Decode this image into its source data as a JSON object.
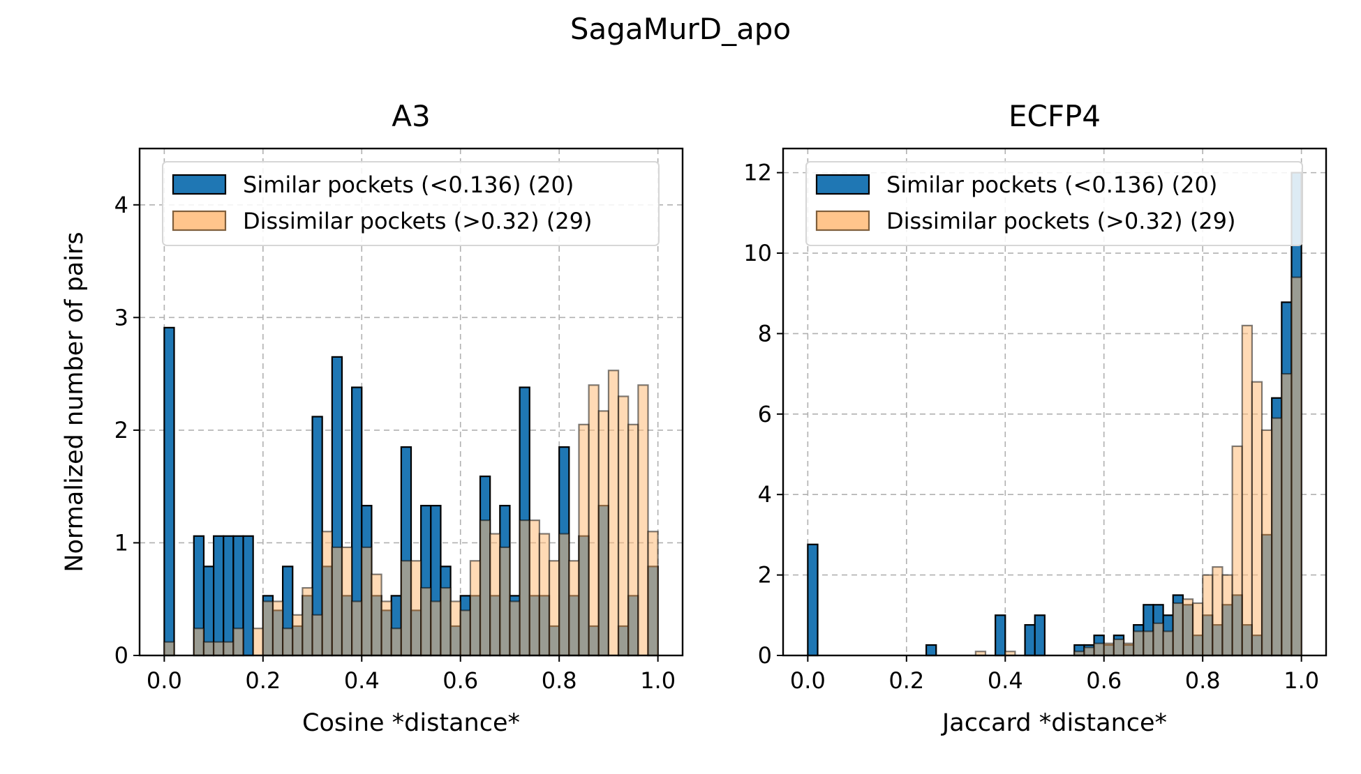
{
  "figure": {
    "suptitle": "SagaMurD_apo"
  },
  "colors": {
    "similar": "#1f77b4",
    "dissimilar": "#ffbb78",
    "dissimilar_edge": "#7f5f3c",
    "overlap": "#8c6a4a"
  },
  "chart_data": [
    {
      "type": "histogram",
      "title": "A3",
      "xlabel": "Cosine *distance*",
      "ylabel": "Normalized number of pairs",
      "xlim": [
        -0.05,
        1.05
      ],
      "ylim": [
        0,
        4.5
      ],
      "xticks": [
        0.0,
        0.2,
        0.4,
        0.6,
        0.8,
        1.0
      ],
      "xtick_labels": [
        "0.0",
        "0.2",
        "0.4",
        "0.6",
        "0.8",
        "1.0"
      ],
      "yticks": [
        0,
        1,
        2,
        3,
        4
      ],
      "ytick_labels": [
        "0",
        "1",
        "2",
        "3",
        "4"
      ],
      "grid": true,
      "legend_position": "top",
      "bins": {
        "start": 0.0,
        "end": 1.0,
        "count": 50
      },
      "series": [
        {
          "name": "Similar pockets (<0.136) (20)",
          "values": [
            2.91,
            0,
            0,
            1.06,
            0.79,
            1.06,
            1.06,
            1.06,
            1.06,
            0,
            0.53,
            0.4,
            0.79,
            0.26,
            0.53,
            2.12,
            0.79,
            2.65,
            0.53,
            2.38,
            1.33,
            0.53,
            0.4,
            0.53,
            1.85,
            0.4,
            1.33,
            1.33,
            0.79,
            0.26,
            0.53,
            0.53,
            1.59,
            0.53,
            1.33,
            0.53,
            2.38,
            0.53,
            0.53,
            0.26,
            1.85,
            0.53,
            1.06,
            0.26,
            1.33,
            0,
            0.26,
            0.53,
            0,
            0.79
          ]
        },
        {
          "name": "Dissimilar pockets (>0.32) (29)",
          "values": [
            0.12,
            0,
            0,
            0.24,
            0.12,
            0.12,
            0.12,
            0.24,
            0,
            0.24,
            0.48,
            0.48,
            0.24,
            0.36,
            0.6,
            0.36,
            1.1,
            0.96,
            0.96,
            0.48,
            0.96,
            0.72,
            0.48,
            0.24,
            0.84,
            0.84,
            0.6,
            0.48,
            0.6,
            0.48,
            0.4,
            0.84,
            1.2,
            1.08,
            0.96,
            0.48,
            1.2,
            1.2,
            1.08,
            0.84,
            1.08,
            0.84,
            2.05,
            2.4,
            2.17,
            2.53,
            2.3,
            2.05,
            2.4,
            1.1
          ]
        }
      ]
    },
    {
      "type": "histogram",
      "title": "ECFP4",
      "xlabel": "Jaccard *distance*",
      "ylabel": "",
      "xlim": [
        -0.05,
        1.05
      ],
      "ylim": [
        0,
        12.6
      ],
      "xticks": [
        0.0,
        0.2,
        0.4,
        0.6,
        0.8,
        1.0
      ],
      "xtick_labels": [
        "0.0",
        "0.2",
        "0.4",
        "0.6",
        "0.8",
        "1.0"
      ],
      "yticks": [
        0,
        2,
        4,
        6,
        8,
        10,
        12
      ],
      "ytick_labels": [
        "0",
        "2",
        "4",
        "6",
        "8",
        "10",
        "12"
      ],
      "grid": true,
      "legend_position": "top",
      "bins": {
        "start": 0.0,
        "end": 1.0,
        "count": 50
      },
      "series": [
        {
          "name": "Similar pockets (<0.136) (20)",
          "values": [
            2.76,
            0,
            0,
            0,
            0,
            0,
            0,
            0,
            0,
            0,
            0,
            0,
            0.26,
            0,
            0,
            0,
            0,
            0,
            0,
            1.0,
            0,
            0,
            0.76,
            1.0,
            0,
            0,
            0,
            0.26,
            0.26,
            0.5,
            0.26,
            0.5,
            0.26,
            0.76,
            1.26,
            1.26,
            1.0,
            1.5,
            1.26,
            0.5,
            1.0,
            0.76,
            1.26,
            1.5,
            0.76,
            0.5,
            3.0,
            6.4,
            8.78,
            12.0
          ]
        },
        {
          "name": "Dissimilar pockets (>0.32) (29)",
          "values": [
            0,
            0,
            0,
            0,
            0,
            0,
            0,
            0,
            0,
            0,
            0,
            0,
            0,
            0,
            0,
            0,
            0,
            0.1,
            0,
            0,
            0.1,
            0,
            0,
            0,
            0,
            0,
            0,
            0.1,
            0.2,
            0.3,
            0.3,
            0.4,
            0.3,
            0.6,
            0.6,
            0.8,
            0.6,
            1.3,
            1.4,
            1.3,
            2.0,
            2.2,
            2.0,
            5.2,
            8.2,
            6.8,
            5.6,
            5.9,
            7.0,
            9.4
          ]
        }
      ]
    }
  ]
}
